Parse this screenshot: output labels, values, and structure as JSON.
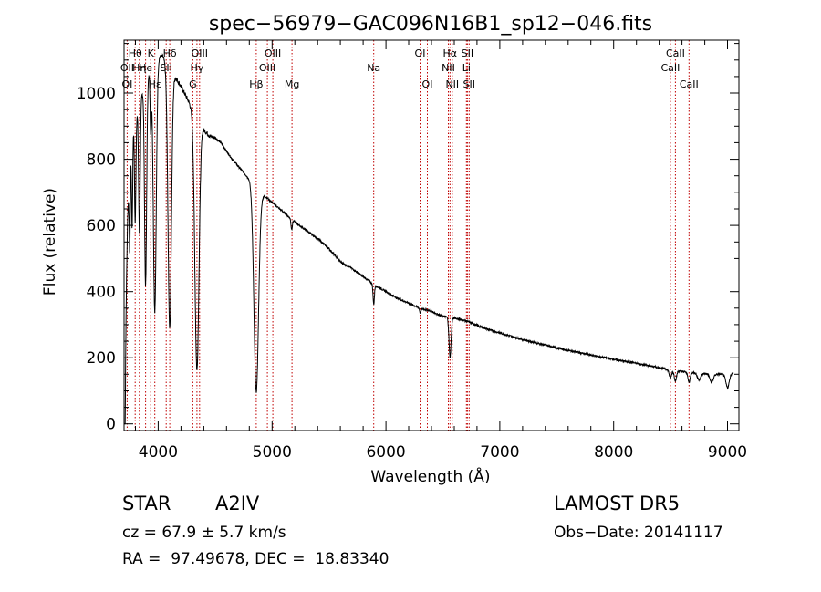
{
  "chart_data": {
    "type": "line",
    "title": "spec−56979−GAC096N16B1_sp12−046.fits",
    "xlabel": "Wavelength (Å)",
    "ylabel": "Flux (relative)",
    "xlim": [
      3700,
      9100
    ],
    "ylim": [
      -20,
      1160
    ],
    "xticks": [
      4000,
      5000,
      6000,
      7000,
      8000,
      9000
    ],
    "yticks": [
      0,
      200,
      400,
      600,
      800,
      1000
    ],
    "xtick_labels": [
      "4000",
      "5000",
      "6000",
      "7000",
      "8000",
      "9000"
    ],
    "ytick_labels": [
      "0",
      "200",
      "400",
      "600",
      "800",
      "1000"
    ],
    "grid": false,
    "continuum": [
      [
        3700,
        20
      ],
      [
        3715,
        300
      ],
      [
        3730,
        600
      ],
      [
        3745,
        760
      ],
      [
        3760,
        840
      ],
      [
        3780,
        900
      ],
      [
        3800,
        930
      ],
      [
        3830,
        950
      ],
      [
        3860,
        1000
      ],
      [
        3900,
        1040
      ],
      [
        3940,
        1070
      ],
      [
        3970,
        1090
      ],
      [
        4000,
        1110
      ],
      [
        4040,
        1110
      ],
      [
        4080,
        1080
      ],
      [
        4130,
        1060
      ],
      [
        4200,
        1020
      ],
      [
        4260,
        980
      ],
      [
        4300,
        950
      ],
      [
        4360,
        910
      ],
      [
        4400,
        890
      ],
      [
        4450,
        870
      ],
      [
        4500,
        865
      ],
      [
        4550,
        850
      ],
      [
        4600,
        825
      ],
      [
        4650,
        800
      ],
      [
        4700,
        780
      ],
      [
        4750,
        760
      ],
      [
        4800,
        740
      ],
      [
        4850,
        700
      ],
      [
        4880,
        690
      ],
      [
        4920,
        690
      ],
      [
        4950,
        685
      ],
      [
        5000,
        670
      ],
      [
        5100,
        640
      ],
      [
        5200,
        610
      ],
      [
        5300,
        585
      ],
      [
        5400,
        560
      ],
      [
        5500,
        530
      ],
      [
        5600,
        490
      ],
      [
        5700,
        470
      ],
      [
        5800,
        445
      ],
      [
        5900,
        420
      ],
      [
        6000,
        400
      ],
      [
        6100,
        380
      ],
      [
        6200,
        365
      ],
      [
        6300,
        350
      ],
      [
        6400,
        340
      ],
      [
        6500,
        325
      ],
      [
        6560,
        322
      ],
      [
        6600,
        320
      ],
      [
        6700,
        312
      ],
      [
        6800,
        298
      ],
      [
        6900,
        285
      ],
      [
        7000,
        275
      ],
      [
        7200,
        255
      ],
      [
        7400,
        238
      ],
      [
        7600,
        222
      ],
      [
        7800,
        208
      ],
      [
        8000,
        195
      ],
      [
        8200,
        183
      ],
      [
        8400,
        170
      ],
      [
        8500,
        163
      ],
      [
        8600,
        158
      ],
      [
        8700,
        155
      ],
      [
        8800,
        152
      ],
      [
        8900,
        150
      ],
      [
        9000,
        150
      ],
      [
        9050,
        155
      ]
    ],
    "absorption": [
      [
        3705,
        300,
        6
      ],
      [
        3750,
        270,
        5
      ],
      [
        3771,
        280,
        5
      ],
      [
        3798,
        320,
        6
      ],
      [
        3835,
        380,
        7
      ],
      [
        3889,
        610,
        9
      ],
      [
        3934,
        180,
        5
      ],
      [
        3970,
        750,
        13
      ],
      [
        4101,
        780,
        15
      ],
      [
        4340,
        760,
        18
      ],
      [
        4861,
        600,
        20
      ],
      [
        5172,
        30,
        6
      ],
      [
        5893,
        60,
        6
      ],
      [
        6302,
        15,
        6
      ],
      [
        6563,
        120,
        9
      ],
      [
        8498,
        25,
        10
      ],
      [
        8542,
        30,
        10
      ],
      [
        8662,
        30,
        10
      ],
      [
        8750,
        20,
        15
      ],
      [
        8860,
        25,
        15
      ],
      [
        9000,
        40,
        15
      ]
    ],
    "lines": [
      {
        "name": "Hθ",
        "wave": 3798,
        "row": 0
      },
      {
        "name": "Hη",
        "wave": 3835,
        "row": 1
      },
      {
        "name": "K",
        "wave": 3934,
        "row": 0
      },
      {
        "name": "Hδ",
        "wave": 4101,
        "row": 0
      },
      {
        "name": "OIII",
        "wave": 4363,
        "row": 0
      },
      {
        "name": "OIII",
        "wave": 5007,
        "row": 0
      },
      {
        "name": "OI",
        "wave": 6300,
        "row": 0
      },
      {
        "name": "Hα",
        "wave": 6563,
        "row": 0
      },
      {
        "name": "SII",
        "wave": 6716,
        "row": 0
      },
      {
        "name": "CaII",
        "wave": 8542,
        "row": 0
      },
      {
        "name": "OII",
        "wave": 3727,
        "row": 1
      },
      {
        "name": "He",
        "wave": 3889,
        "row": 1
      },
      {
        "name": "SII",
        "wave": 4070,
        "row": 1
      },
      {
        "name": "Hγ",
        "wave": 4340,
        "row": 1
      },
      {
        "name": "OIII",
        "wave": 4959,
        "row": 1
      },
      {
        "name": "NII",
        "wave": 6548,
        "row": 1
      },
      {
        "name": "Li",
        "wave": 6707,
        "row": 1
      },
      {
        "name": "CaII",
        "wave": 8498,
        "row": 1
      },
      {
        "name": "OI",
        "wave": 3727,
        "row": 2
      },
      {
        "name": "Hε",
        "wave": 3970,
        "row": 2
      },
      {
        "name": "G",
        "wave": 4304,
        "row": 2
      },
      {
        "name": "Hβ",
        "wave": 4861,
        "row": 2
      },
      {
        "name": "Mg",
        "wave": 5175,
        "row": 2
      },
      {
        "name": "Na",
        "wave": 5893,
        "row": 1
      },
      {
        "name": "OI",
        "wave": 6364,
        "row": 2
      },
      {
        "name": "NII",
        "wave": 6583,
        "row": 2
      },
      {
        "name": "SII",
        "wave": 6731,
        "row": 2
      },
      {
        "name": "CaII",
        "wave": 8662,
        "row": 2
      }
    ],
    "line_color": "#c00000",
    "spectrum_color": "#000000"
  },
  "footer": {
    "class_label": "STAR",
    "subclass": "A2IV",
    "survey": "LAMOST DR5",
    "cz": "cz = 67.9 ± 5.7 km/s",
    "obs_date": "Obs−Date: 20141117",
    "coords": "RA =  97.49678, DEC =  18.83340"
  }
}
